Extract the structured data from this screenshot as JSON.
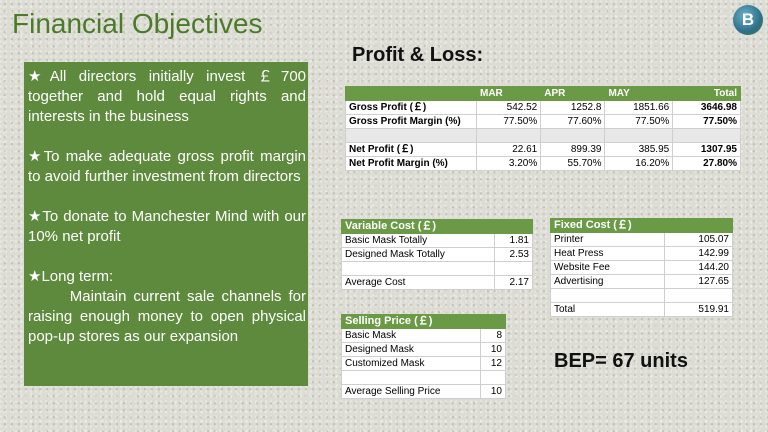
{
  "slide": {
    "title": "Financial Objectives",
    "logo_letter": "B"
  },
  "objectives": [
    {
      "text": "★All directors initially invest ￡700 together and hold equal rights and interests in the business"
    },
    {
      "text": "★To make adequate gross profit margin to avoid further investment from directors"
    },
    {
      "text": "★To donate to Manchester Mind with our 10% net profit"
    },
    {
      "text": "★Long term:",
      "sub": "Maintain current sale channels for raising enough money to open physical pop-up stores as our expansion"
    }
  ],
  "profit_loss": {
    "heading": "Profit & Loss:",
    "columns": [
      "",
      "MAR",
      "APR",
      "MAY",
      "Total"
    ],
    "rows": [
      {
        "label": "Gross Profit (￡)",
        "mar": "542.52",
        "apr": "1252.8",
        "may": "1851.66",
        "total": "3646.98"
      },
      {
        "label": "Gross Profit Margin (%)",
        "mar": "77.50%",
        "apr": "77.60%",
        "may": "77.50%",
        "total": "77.50%"
      },
      {
        "label": "Net Profit (￡)",
        "mar": "22.61",
        "apr": "899.39",
        "may": "385.95",
        "total": "1307.95"
      },
      {
        "label": "Net Profit Margin (%)",
        "mar": "3.20%",
        "apr": "55.70%",
        "may": "16.20%",
        "total": "27.80%"
      }
    ]
  },
  "variable_cost": {
    "header": "Variable Cost (￡)",
    "rows": [
      {
        "label": "Basic Mask Totally",
        "value": "1.81"
      },
      {
        "label": "Designed Mask Totally",
        "value": "2.53"
      },
      {
        "label": "",
        "value": ""
      },
      {
        "label": "Average Cost",
        "value": "2.17"
      }
    ]
  },
  "fixed_cost": {
    "header": "Fixed Cost (￡)",
    "rows": [
      {
        "label": "Printer",
        "value": "105.07"
      },
      {
        "label": "Heat Press",
        "value": "142.99"
      },
      {
        "label": "Website Fee",
        "value": "144.20"
      },
      {
        "label": "Advertising",
        "value": "127.65"
      },
      {
        "label": "",
        "value": ""
      },
      {
        "label": "Total",
        "value": "519.91"
      }
    ]
  },
  "selling_price": {
    "header": "Selling Price (￡)",
    "rows": [
      {
        "label": "Basic Mask",
        "value": "8"
      },
      {
        "label": "Designed Mask",
        "value": "10"
      },
      {
        "label": "Customized Mask",
        "value": "12"
      },
      {
        "label": "",
        "value": ""
      },
      {
        "label": "Average Selling Price",
        "value": "10"
      }
    ]
  },
  "bep": "BEP= 67 units"
}
